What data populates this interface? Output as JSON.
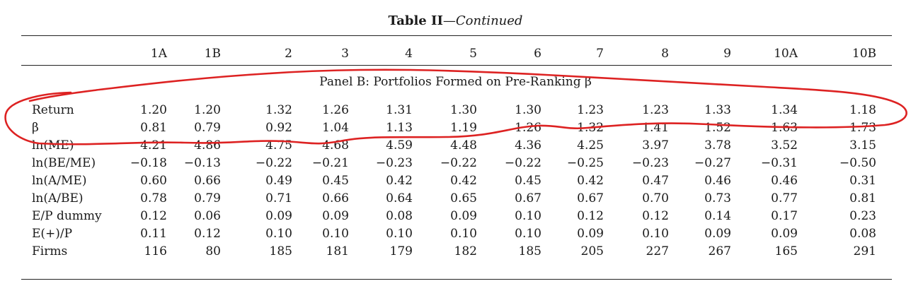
{
  "table": {
    "title_bold": "Table II",
    "title_dash": "—",
    "title_italic": "Continued",
    "columns": [
      "1A",
      "1B",
      "2",
      "3",
      "4",
      "5",
      "6",
      "7",
      "8",
      "9",
      "10A",
      "10B"
    ],
    "panel_title": "Panel B: Portfolios Formed on Pre-Ranking β",
    "rows": [
      {
        "label": "Return",
        "values": [
          "1.20",
          "1.20",
          "1.32",
          "1.26",
          "1.31",
          "1.30",
          "1.30",
          "1.23",
          "1.23",
          "1.33",
          "1.34",
          "1.18"
        ]
      },
      {
        "label": "β",
        "values": [
          "0.81",
          "0.79",
          "0.92",
          "1.04",
          "1.13",
          "1.19",
          "1.26",
          "1.32",
          "1.41",
          "1.52",
          "1.63",
          "1.73"
        ]
      },
      {
        "label": "ln(ME)",
        "values": [
          "4.21",
          "4.86",
          "4.75",
          "4.68",
          "4.59",
          "4.48",
          "4.36",
          "4.25",
          "3.97",
          "3.78",
          "3.52",
          "3.15"
        ]
      },
      {
        "label": "ln(BE/ME)",
        "values": [
          "−0.18",
          "−0.13",
          "−0.22",
          "−0.21",
          "−0.23",
          "−0.22",
          "−0.22",
          "−0.25",
          "−0.23",
          "−0.27",
          "−0.31",
          "−0.50"
        ]
      },
      {
        "label": "ln(A/ME)",
        "values": [
          "0.60",
          "0.66",
          "0.49",
          "0.45",
          "0.42",
          "0.42",
          "0.45",
          "0.42",
          "0.47",
          "0.46",
          "0.46",
          "0.31"
        ]
      },
      {
        "label": "ln(A/BE)",
        "values": [
          "0.78",
          "0.79",
          "0.71",
          "0.66",
          "0.64",
          "0.65",
          "0.67",
          "0.67",
          "0.70",
          "0.73",
          "0.77",
          "0.81"
        ]
      },
      {
        "label": "E/P dummy",
        "values": [
          "0.12",
          "0.06",
          "0.09",
          "0.09",
          "0.08",
          "0.09",
          "0.10",
          "0.12",
          "0.12",
          "0.14",
          "0.17",
          "0.23"
        ]
      },
      {
        "label": "E(+)/P",
        "values": [
          "0.11",
          "0.12",
          "0.10",
          "0.10",
          "0.10",
          "0.10",
          "0.10",
          "0.09",
          "0.10",
          "0.09",
          "0.09",
          "0.08"
        ]
      },
      {
        "label": "Firms",
        "values": [
          "116",
          "80",
          "185",
          "181",
          "179",
          "182",
          "185",
          "205",
          "227",
          "267",
          "165",
          "291"
        ]
      }
    ]
  },
  "annotation": {
    "color": "#dd2222"
  }
}
